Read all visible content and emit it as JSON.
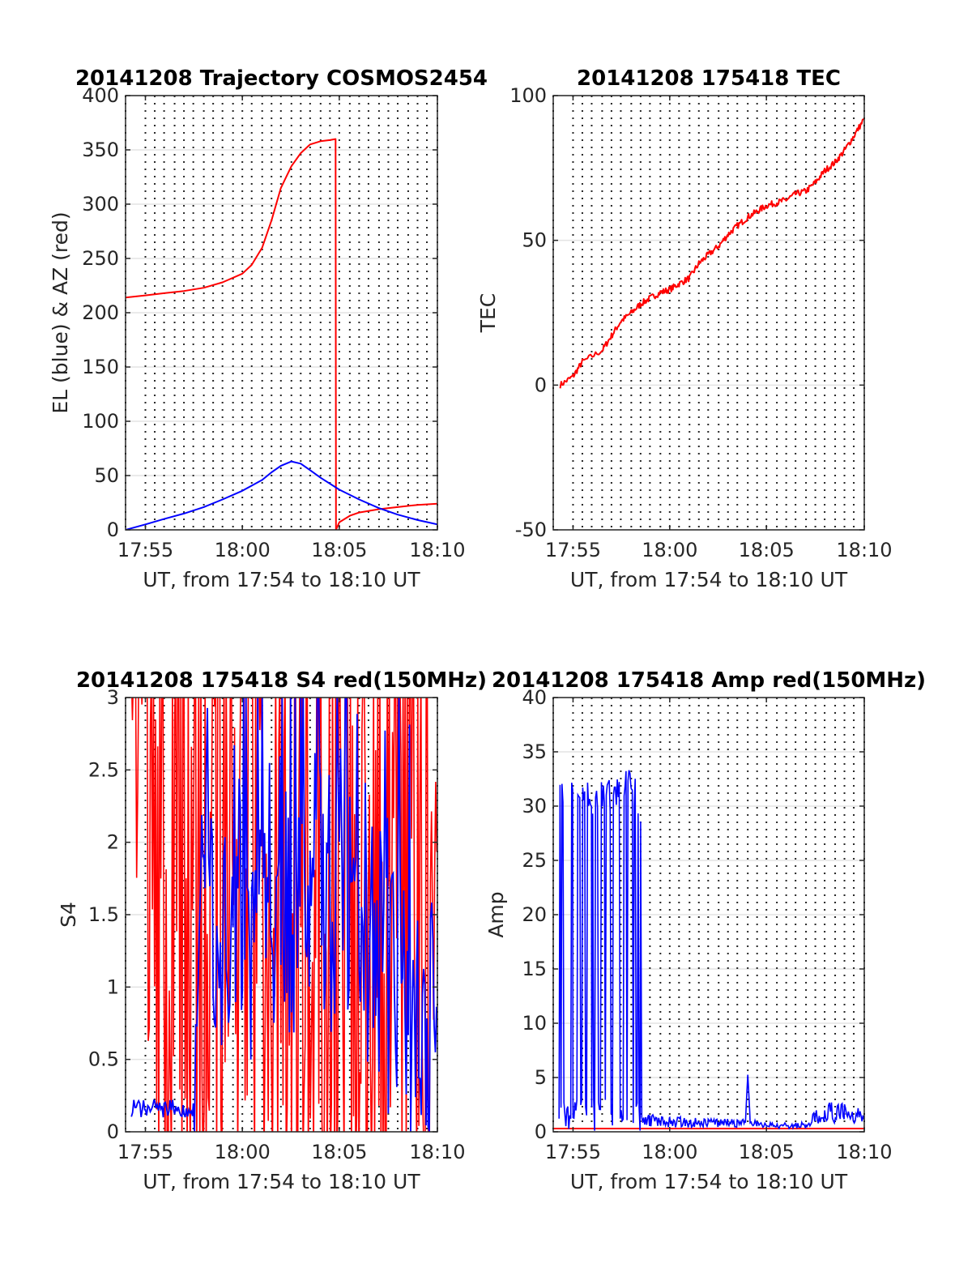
{
  "chart_data": [
    {
      "type": "line",
      "title": "20141208 Trajectory COSMOS2454",
      "xlabel": "UT, from 17:54 to 18:10 UT",
      "ylabel": "EL (blue) & AZ (red)",
      "x_unit": "minutes since 17:54 UT",
      "xlim": [
        17.9,
        18.167
      ],
      "ylim": [
        0,
        400
      ],
      "yticks": [
        0,
        50,
        100,
        150,
        200,
        250,
        300,
        350,
        400
      ],
      "xticks": [
        {
          "x": 17.917,
          "label": "17:55"
        },
        {
          "x": 18.0,
          "label": "18:00"
        },
        {
          "x": 18.083,
          "label": "18:05"
        },
        {
          "x": 18.167,
          "label": "18:10"
        }
      ],
      "series": [
        {
          "color": "#ff0000",
          "x": [
            17.9,
            17.917,
            17.933,
            17.95,
            17.967,
            17.983,
            18.0,
            18.008,
            18.017,
            18.025,
            18.033,
            18.042,
            18.05,
            18.058,
            18.067,
            18.075,
            18.0798,
            18.0802,
            18.083,
            18.092,
            18.1,
            18.117,
            18.133,
            18.15,
            18.167
          ],
          "y": [
            214,
            216,
            218,
            220,
            223,
            228,
            236,
            244,
            260,
            285,
            315,
            335,
            347,
            355,
            358,
            359,
            360,
            0,
            7,
            13,
            16,
            19,
            21,
            23,
            24
          ]
        },
        {
          "color": "#0000ff",
          "x": [
            17.9,
            17.917,
            17.933,
            17.95,
            17.967,
            17.983,
            18.0,
            18.017,
            18.025,
            18.033,
            18.042,
            18.05,
            18.058,
            18.067,
            18.083,
            18.1,
            18.117,
            18.133,
            18.15,
            18.167
          ],
          "y": [
            0,
            5,
            10,
            15,
            21,
            28,
            36,
            46,
            53,
            59,
            63,
            61,
            55,
            48,
            37,
            28,
            20,
            14,
            9,
            5
          ]
        }
      ]
    },
    {
      "type": "line",
      "title": "20141208 175418 TEC",
      "xlabel": "UT, from 17:54 to 18:10 UT",
      "ylabel": "TEC",
      "xlim": [
        17.9,
        18.167
      ],
      "ylim": [
        -50,
        100
      ],
      "yticks": [
        -50,
        0,
        50,
        100
      ],
      "xticks": [
        {
          "x": 17.917,
          "label": "17:55"
        },
        {
          "x": 18.0,
          "label": "18:00"
        },
        {
          "x": 18.083,
          "label": "18:05"
        },
        {
          "x": 18.167,
          "label": "18:10"
        }
      ],
      "series": [
        {
          "color": "#ff0000",
          "x": [
            17.906,
            17.917,
            17.925,
            17.942,
            17.95,
            17.958,
            17.967,
            17.975,
            17.983,
            17.992,
            18.0,
            18.008,
            18.017,
            18.025,
            18.033,
            18.042,
            18.05,
            18.058,
            18.067,
            18.075,
            18.083,
            18.092,
            18.1,
            18.108,
            18.117,
            18.125,
            18.133,
            18.142,
            18.15,
            18.158,
            18.167
          ],
          "y": [
            0,
            3,
            8,
            12,
            17,
            22,
            25,
            28,
            30,
            32,
            33,
            35,
            37,
            42,
            45,
            48,
            52,
            55,
            58,
            60,
            62,
            63,
            64,
            66,
            67,
            70,
            74,
            77,
            81,
            86,
            92
          ]
        }
      ]
    },
    {
      "type": "line",
      "title": "20141208 175418 S4 red(150MHz)",
      "xlabel": "UT, from 17:54 to 18:10 UT",
      "ylabel": "S4",
      "xlim": [
        17.9,
        18.167
      ],
      "ylim": [
        0,
        3
      ],
      "yticks": [
        0,
        0.5,
        1,
        1.5,
        2,
        2.5,
        3
      ],
      "ytick_labels": [
        "0",
        "0.5",
        "1",
        "1.5",
        "2",
        "2.5",
        "3"
      ],
      "xticks": [
        {
          "x": 17.917,
          "label": "17:55"
        },
        {
          "x": 18.0,
          "label": "18:00"
        },
        {
          "x": 18.083,
          "label": "18:05"
        },
        {
          "x": 18.167,
          "label": "18:10"
        }
      ],
      "series": [
        {
          "color": "#ff0000",
          "x_range": [
            17.905,
            18.167
          ],
          "y_range": [
            0,
            3
          ],
          "note_pattern": "dense noisy spikes from 0 to 3"
        },
        {
          "color": "#0000ff",
          "x": [
            17.905,
            17.917,
            17.925,
            17.933,
            17.942,
            17.95,
            17.958,
            17.967,
            17.975,
            17.983,
            17.992,
            18.0,
            18.008,
            18.017,
            18.025,
            18.033,
            18.042,
            18.05,
            18.058,
            18.067,
            18.075,
            18.083,
            18.092,
            18.1,
            18.108,
            18.117,
            18.125,
            18.133,
            18.142,
            18.15,
            18.158,
            18.167
          ],
          "y": [
            0.15,
            0.15,
            0.15,
            0.15,
            0.15,
            0.15,
            0.15,
            1.6,
            1.4,
            1.0,
            1.5,
            1.7,
            1.2,
            2.2,
            1.6,
            1.8,
            1.4,
            1.6,
            1.1,
            2.0,
            1.3,
            1.9,
            1.6,
            1.2,
            1.4,
            1.3,
            0.8,
            1.1,
            0.7,
            0.9,
            0.8,
            0.7
          ]
        }
      ]
    },
    {
      "type": "line",
      "title": "20141208 175418 Amp red(150MHz)",
      "xlabel": "UT, from 17:54 to 18:10 UT",
      "ylabel": "Amp",
      "xlim": [
        17.9,
        18.167
      ],
      "ylim": [
        0,
        40
      ],
      "yticks": [
        0,
        5,
        10,
        15,
        20,
        25,
        30,
        35,
        40
      ],
      "xticks": [
        {
          "x": 17.917,
          "label": "17:55"
        },
        {
          "x": 18.0,
          "label": "18:00"
        },
        {
          "x": 18.083,
          "label": "18:05"
        },
        {
          "x": 18.167,
          "label": "18:10"
        }
      ],
      "series": [
        {
          "color": "#ff0000",
          "x": [
            17.9,
            18.167
          ],
          "y": [
            0.3,
            0.3
          ]
        },
        {
          "color": "#0000ff",
          "x": [
            17.905,
            17.917,
            17.933,
            17.95,
            17.967,
            17.975,
            17.976,
            17.983,
            18.0,
            18.017,
            18.033,
            18.05,
            18.058,
            18.065,
            18.067,
            18.069,
            18.075,
            18.083,
            18.1,
            18.117,
            18.125,
            18.133,
            18.15,
            18.167
          ],
          "y_low": [
            0,
            0,
            0,
            0,
            0,
            0,
            0.5,
            0.5,
            0.4,
            0.4,
            0.4,
            0.4,
            0.4,
            0.6,
            5.2,
            0.6,
            0.4,
            0.3,
            0.3,
            0.3,
            0.5,
            0.8,
            0.8,
            0.8
          ],
          "y_high": [
            32.5,
            33.0,
            32.0,
            32.5,
            33.5,
            31.5,
            1.4,
            1.6,
            1.4,
            1.4,
            1.3,
            1.2,
            1.2,
            1.2,
            5.3,
            1.2,
            1.0,
            0.9,
            0.9,
            0.9,
            2.0,
            2.8,
            2.6,
            2.3
          ]
        }
      ]
    }
  ]
}
